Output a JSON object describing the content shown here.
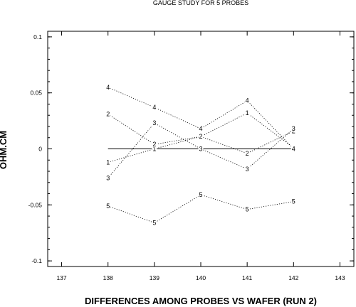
{
  "chart_data": {
    "type": "line",
    "title": "GAUGE STUDY FOR 5 PROBES",
    "xlabel": "DIFFERENCES AMONG PROBES VS WAFER (RUN 2)",
    "ylabel": "OHM.CM",
    "xlim": [
      136.7,
      143.3
    ],
    "ylim": [
      -0.105,
      0.105
    ],
    "xticks": [
      "137",
      "138",
      "139",
      "140",
      "141",
      "142",
      "143"
    ],
    "xtick_values": [
      137,
      138,
      139,
      140,
      141,
      142,
      143
    ],
    "yticks": [
      "0.1",
      "0.05",
      "0",
      "-0.05",
      "-0.1"
    ],
    "ytick_values": [
      0.1,
      0.05,
      0,
      -0.05,
      -0.1
    ],
    "x": [
      138,
      139,
      140,
      141,
      142
    ],
    "series": [
      {
        "name": "1",
        "values": [
          -0.012,
          0.0,
          0.011,
          0.032,
          0.001
        ]
      },
      {
        "name": "2",
        "values": [
          0.031,
          0.004,
          0.011,
          -0.004,
          0.016
        ]
      },
      {
        "name": "3",
        "values": [
          -0.026,
          0.023,
          0.0,
          -0.018,
          0.018
        ]
      },
      {
        "name": "4",
        "values": [
          0.055,
          0.037,
          0.018,
          0.043,
          0.0
        ]
      },
      {
        "name": "5",
        "values": [
          -0.051,
          -0.066,
          -0.041,
          -0.054,
          -0.047
        ]
      }
    ],
    "reference_line": {
      "y": 0,
      "x_from": 138,
      "x_to": 142
    },
    "grid": false,
    "marker_style": "series number as text",
    "line_style": "dotted"
  }
}
